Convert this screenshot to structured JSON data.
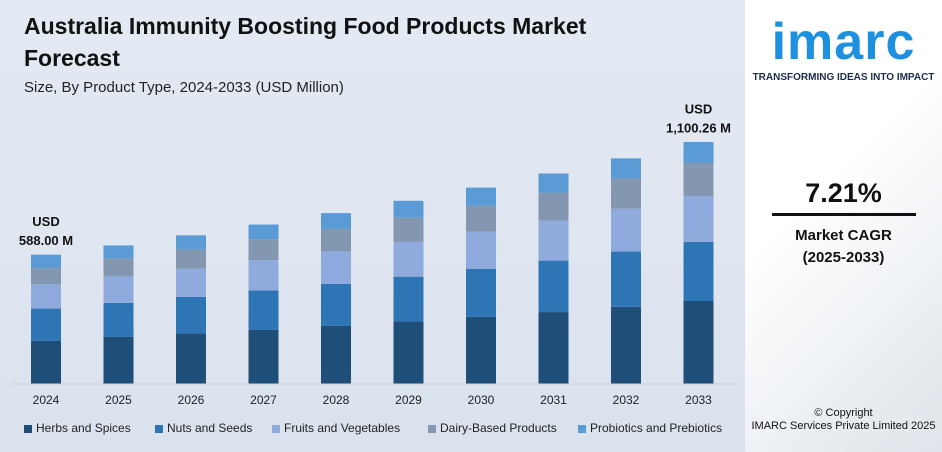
{
  "chart_data": {
    "type": "stacked-bar",
    "title": "Australia Immunity Boosting Food Products Market Forecast",
    "subtitle": "Size, By Product Type, 2024-2033 (USD Million)",
    "categories": [
      "2024",
      "2025",
      "2026",
      "2027",
      "2028",
      "2029",
      "2030",
      "2031",
      "2032",
      "2033"
    ],
    "series": [
      {
        "name": "Herbs and Spices",
        "color": "#1f4e79",
        "values": [
          196.0,
          214,
          230,
          247,
          265,
          284,
          305,
          327,
          351,
          377.4
        ]
      },
      {
        "name": "Nuts and Seeds",
        "color": "#2e75b6",
        "values": [
          147.0,
          155,
          166,
          178,
          190,
          204,
          218,
          234,
          251,
          268.3
        ]
      },
      {
        "name": "Fruits and Vegetables",
        "color": "#8faadc",
        "values": [
          110.2,
          120,
          128,
          138,
          148,
          158,
          170,
          182,
          195,
          209.2
        ]
      },
      {
        "name": "Dairy-Based Products",
        "color": "#8497b0",
        "values": [
          73.5,
          82,
          88,
          95,
          102,
          110,
          118,
          127,
          137,
          150.0
        ]
      },
      {
        "name": "Probiotics and Prebiotics",
        "color": "#5b9bd5",
        "values": [
          61.3,
          59,
          64,
          67,
          72,
          77,
          82,
          87,
          92,
          95.36
        ]
      }
    ],
    "totals": [
      588.0,
      null,
      null,
      null,
      null,
      null,
      null,
      null,
      null,
      1100.26
    ],
    "total_labels": [
      [
        "USD",
        "588.00 M"
      ],
      null,
      null,
      null,
      null,
      null,
      null,
      null,
      null,
      [
        "USD",
        "1,100.26 M"
      ]
    ],
    "legend": "bottom"
  },
  "sidebar": {
    "logo": "imarc",
    "tagline": "TRANSFORMING IDEAS INTO IMPACT",
    "cagr": "7.21%",
    "cagr_label": "Market CAGR",
    "cagr_period": "(2025-2033)",
    "copyright": "© Copyright",
    "company": "IMARC Services Private Limited 2025"
  }
}
